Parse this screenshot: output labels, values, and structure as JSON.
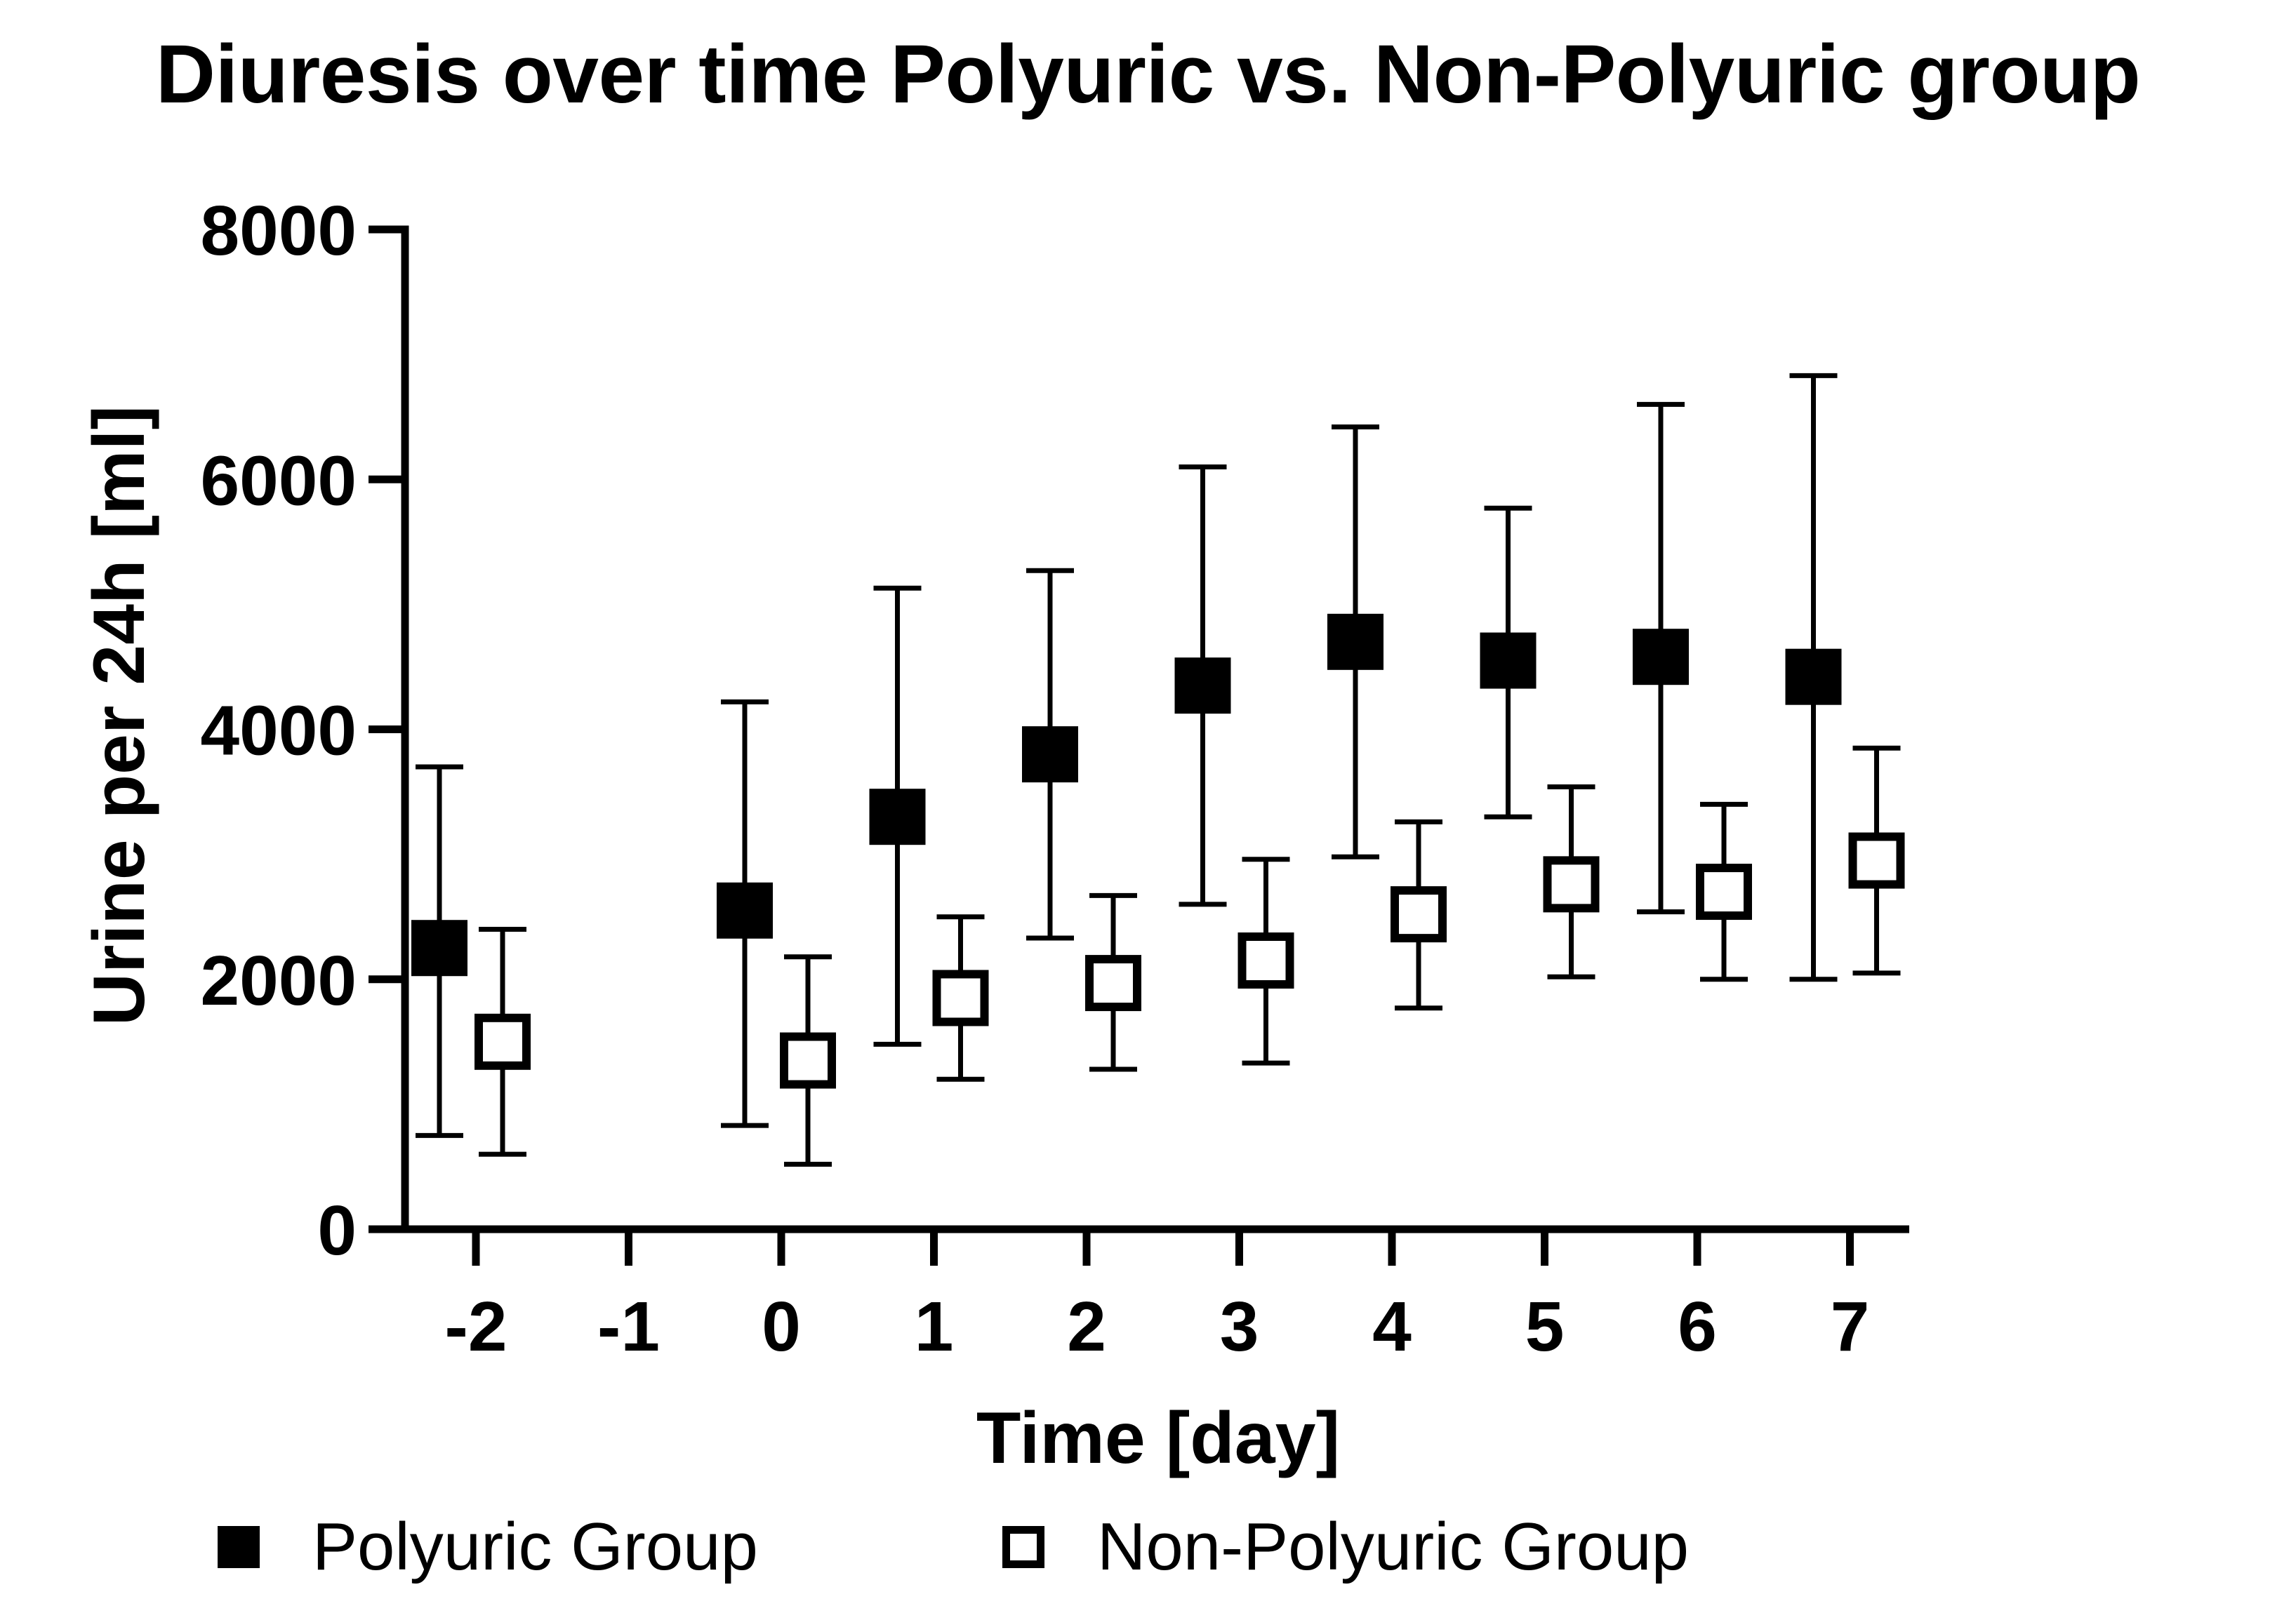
{
  "chart_data": {
    "type": "scatter",
    "title": "Diuresis over time Polyuric vs. Non-Polyuric group",
    "xlabel": "Time [day]",
    "ylabel": "Urine per 24h [ml]",
    "ylim": [
      0,
      8000
    ],
    "yticks": [
      "0",
      "2000",
      "4000",
      "6000",
      "8000"
    ],
    "categories": [
      "-2",
      "-1",
      "0",
      "1",
      "2",
      "3",
      "4",
      "5",
      "6",
      "7"
    ],
    "grid": false,
    "legend_position": "bottom",
    "series": [
      {
        "name": "Polyuric Group",
        "marker": "filled-square",
        "color": "#000000",
        "values": [
          2250,
          null,
          2550,
          3300,
          3800,
          4350,
          4700,
          4550,
          4580,
          4420
        ],
        "upper": [
          3700,
          null,
          4220,
          5130,
          5270,
          6100,
          6420,
          5770,
          6600,
          6830
        ],
        "lower": [
          750,
          null,
          830,
          1480,
          2330,
          2600,
          2980,
          3300,
          2540,
          2000
        ]
      },
      {
        "name": "Non-Polyuric Group",
        "marker": "open-square",
        "color": "#000000",
        "values": [
          1500,
          null,
          1350,
          1850,
          1970,
          2150,
          2520,
          2760,
          2700,
          2950
        ],
        "upper": [
          2400,
          null,
          2180,
          2500,
          2670,
          2960,
          3260,
          3540,
          3400,
          3850
        ],
        "lower": [
          600,
          null,
          520,
          1200,
          1280,
          1330,
          1770,
          2020,
          2000,
          2050
        ]
      }
    ]
  }
}
